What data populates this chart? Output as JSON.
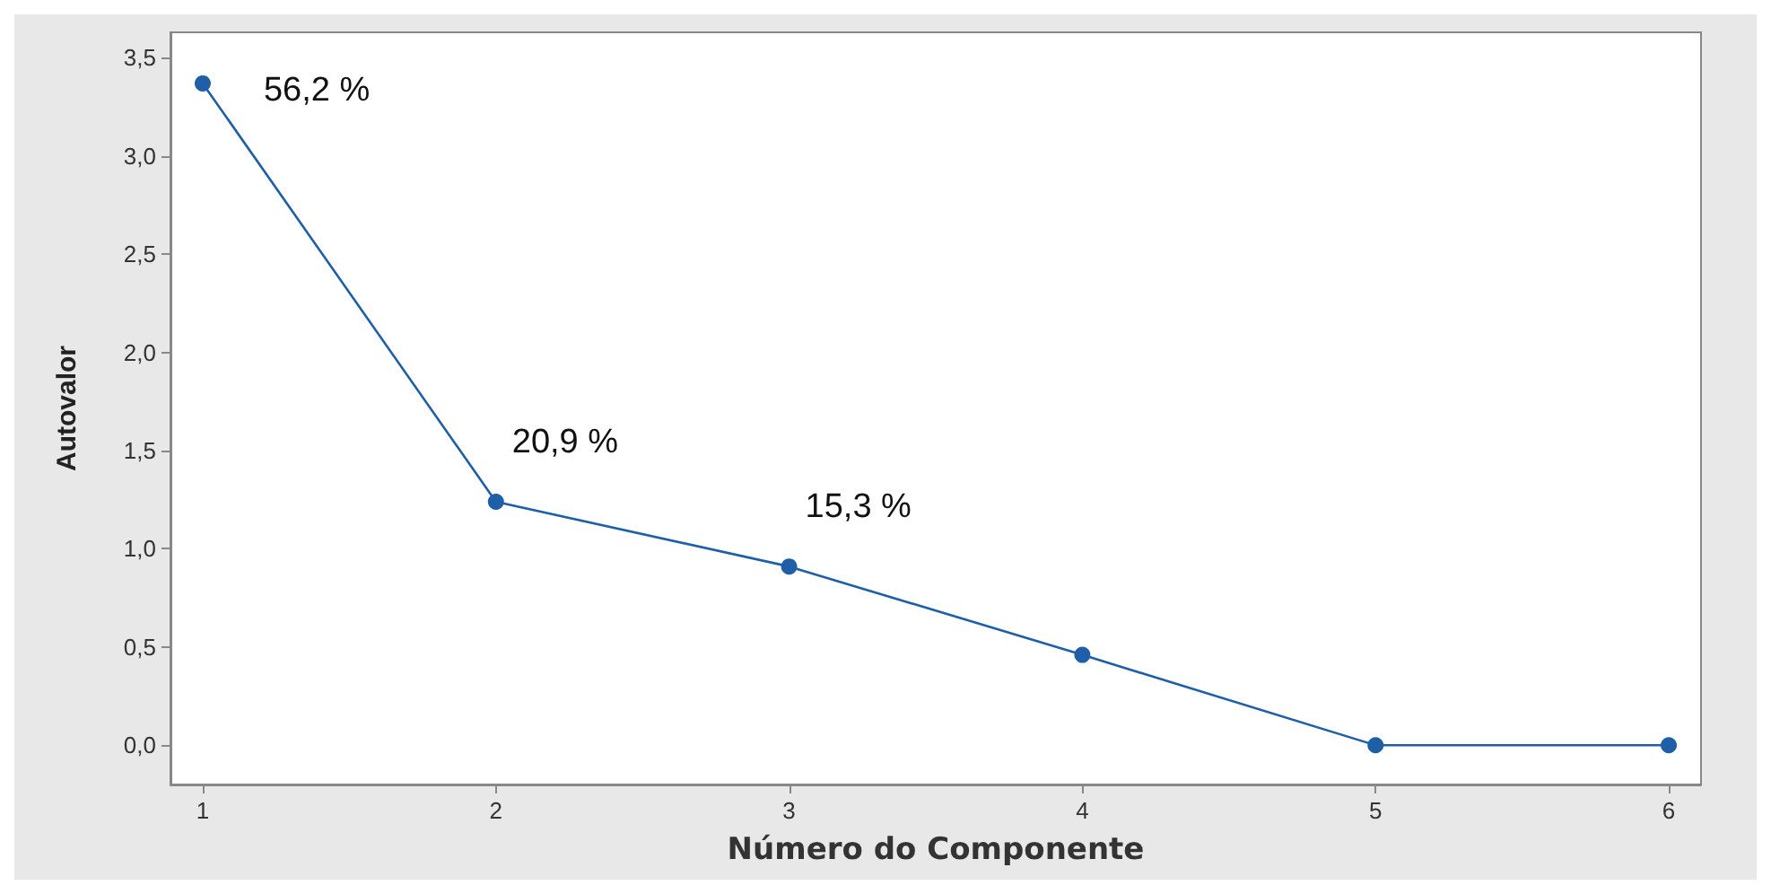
{
  "chart_data": {
    "type": "line",
    "xlabel": "Número do Componente",
    "ylabel": "Autovalor",
    "x": [
      1,
      2,
      3,
      4,
      5,
      6
    ],
    "series": [
      {
        "color": "#1f5fa8",
        "values": [
          3.37,
          1.24,
          0.91,
          0.46,
          0,
          0
        ]
      }
    ],
    "xlim": [
      0.89,
      6.11
    ],
    "xticks": [
      1,
      2,
      3,
      4,
      5,
      6
    ],
    "ylim": [
      -0.2,
      3.63
    ],
    "yticks": [
      {
        "value": 0,
        "label": "0,0"
      },
      {
        "value": 0.5,
        "label": "0,5"
      },
      {
        "value": 1,
        "label": "1,0"
      },
      {
        "value": 1.5,
        "label": "1,5"
      },
      {
        "value": 2,
        "label": "2,0"
      },
      {
        "value": 2.5,
        "label": "2,5"
      },
      {
        "value": 3,
        "label": "3,0"
      },
      {
        "value": 3.5,
        "label": "3,5"
      }
    ],
    "annotations": [
      {
        "text": "56,2 %",
        "x": 1,
        "y": 3.37
      },
      {
        "text": "20,9 %",
        "x": 2,
        "y": 1.24
      },
      {
        "text": "15,3 %",
        "x": 3,
        "y": 0.91
      }
    ],
    "grid": false,
    "marker": "circle",
    "line_style": "solid"
  }
}
